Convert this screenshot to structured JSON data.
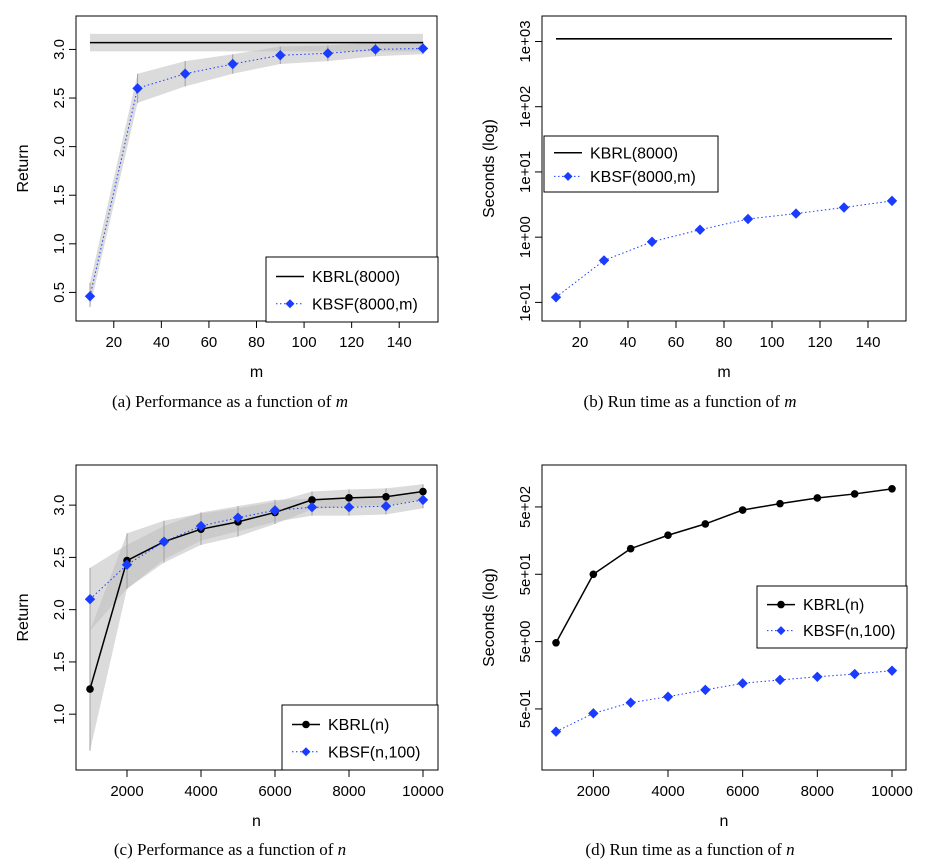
{
  "colors": {
    "kbrl": "#000000",
    "kbsf": "#1a3cff",
    "band": "#bdbdbd"
  },
  "captions": [
    {
      "prefix": "(a) Performance as a function of ",
      "var": "m"
    },
    {
      "prefix": "(b) Run time as a function of ",
      "var": "m"
    },
    {
      "prefix": "(c) Performance as a function of ",
      "var": "n"
    },
    {
      "prefix": "(d) Run time as a function of ",
      "var": "n"
    }
  ],
  "chart_data": [
    {
      "type": "line",
      "xlabel": "m",
      "ylabel": "Return",
      "xlim": [
        10,
        150
      ],
      "ylim": [
        0.35,
        3.2
      ],
      "log_y": false,
      "xticks": [
        "20",
        "40",
        "60",
        "80",
        "100",
        "120",
        "140"
      ],
      "yticks": [
        "0.5",
        "1.0",
        "1.5",
        "2.0",
        "2.5",
        "3.0"
      ],
      "legend_position": "bottom-right",
      "series": [
        {
          "name": "KBRL(8000)",
          "style": "solid-horizontal",
          "x": [
            10,
            150
          ],
          "values": [
            3.07,
            3.07
          ],
          "band_low": [
            2.98,
            2.98
          ],
          "band_high": [
            3.16,
            3.16
          ]
        },
        {
          "name": "KBSF(8000,m)",
          "style": "dotted-diamond",
          "x": [
            10,
            30,
            50,
            70,
            90,
            110,
            130,
            150
          ],
          "values": [
            0.46,
            2.6,
            2.75,
            2.85,
            2.94,
            2.96,
            3.0,
            3.01
          ],
          "band_low": [
            0.35,
            2.45,
            2.62,
            2.75,
            2.85,
            2.88,
            2.93,
            2.95
          ],
          "band_high": [
            0.6,
            2.75,
            2.88,
            2.95,
            3.03,
            3.04,
            3.07,
            3.08
          ]
        }
      ]
    },
    {
      "type": "line",
      "xlabel": "m",
      "ylabel": "Seconds (log)",
      "xlim": [
        10,
        150
      ],
      "ylim": [
        0.085,
        1500
      ],
      "log_y": true,
      "xticks": [
        "20",
        "40",
        "60",
        "80",
        "100",
        "120",
        "140"
      ],
      "yticks": [
        "1e-01",
        "1e+00",
        "1e+01",
        "1e+02",
        "1e+03"
      ],
      "legend_position": "middle-left",
      "series": [
        {
          "name": "KBRL(8000)",
          "style": "solid-horizontal",
          "x": [
            10,
            150
          ],
          "values": [
            1100,
            1100
          ]
        },
        {
          "name": "KBSF(8000,m)",
          "style": "dotted-diamond",
          "x": [
            10,
            30,
            50,
            70,
            90,
            110,
            130,
            150
          ],
          "values": [
            0.12,
            0.44,
            0.85,
            1.3,
            1.9,
            2.3,
            2.85,
            3.6
          ]
        }
      ]
    },
    {
      "type": "line",
      "xlabel": "n",
      "ylabel": "Return",
      "xlim": [
        1000,
        10000
      ],
      "ylim": [
        0.6,
        3.25
      ],
      "log_y": false,
      "xticks": [
        "2000",
        "4000",
        "6000",
        "8000",
        "10000"
      ],
      "yticks": [
        "1.0",
        "1.5",
        "2.0",
        "2.5",
        "3.0"
      ],
      "legend_position": "bottom-right",
      "series": [
        {
          "name": "KBRL(n)",
          "style": "solid-circle",
          "x": [
            1000,
            2000,
            3000,
            4000,
            5000,
            6000,
            7000,
            8000,
            9000,
            10000
          ],
          "values": [
            1.24,
            2.47,
            2.65,
            2.77,
            2.84,
            2.93,
            3.05,
            3.07,
            3.08,
            3.13
          ],
          "band_low": [
            0.65,
            2.2,
            2.45,
            2.62,
            2.7,
            2.82,
            2.96,
            2.99,
            3.0,
            3.05
          ],
          "band_high": [
            1.8,
            2.73,
            2.85,
            2.92,
            2.97,
            3.03,
            3.13,
            3.15,
            3.16,
            3.2
          ]
        },
        {
          "name": "KBSF(n,100)",
          "style": "dotted-diamond",
          "x": [
            1000,
            2000,
            3000,
            4000,
            5000,
            6000,
            7000,
            8000,
            9000,
            10000
          ],
          "values": [
            2.1,
            2.43,
            2.65,
            2.8,
            2.88,
            2.95,
            2.98,
            2.98,
            2.99,
            3.05
          ],
          "band_low": [
            1.8,
            2.2,
            2.48,
            2.66,
            2.75,
            2.84,
            2.9,
            2.9,
            2.91,
            2.97
          ],
          "band_high": [
            2.4,
            2.62,
            2.8,
            2.93,
            2.99,
            3.05,
            3.06,
            3.06,
            3.07,
            3.12
          ]
        }
      ]
    },
    {
      "type": "line",
      "xlabel": "n",
      "ylabel": "Seconds (log)",
      "xlim": [
        1000,
        10000
      ],
      "ylim": [
        0.1,
        1300
      ],
      "log_y": true,
      "xticks": [
        "2000",
        "4000",
        "6000",
        "8000",
        "10000"
      ],
      "yticks": [
        "5e-01",
        "5e+00",
        "5e+01",
        "5e+02"
      ],
      "legend_position": "middle-right",
      "series": [
        {
          "name": "KBRL(n)",
          "style": "solid-circle",
          "x": [
            1000,
            2000,
            3000,
            4000,
            5000,
            6000,
            7000,
            8000,
            9000,
            10000
          ],
          "values": [
            4.8,
            50,
            120,
            190,
            280,
            450,
            560,
            680,
            780,
            930
          ]
        },
        {
          "name": "KBSF(n,100)",
          "style": "dotted-diamond",
          "x": [
            1000,
            2000,
            3000,
            4000,
            5000,
            6000,
            7000,
            8000,
            9000,
            10000
          ],
          "values": [
            0.23,
            0.43,
            0.62,
            0.76,
            0.96,
            1.2,
            1.35,
            1.5,
            1.65,
            1.85
          ]
        }
      ]
    }
  ]
}
